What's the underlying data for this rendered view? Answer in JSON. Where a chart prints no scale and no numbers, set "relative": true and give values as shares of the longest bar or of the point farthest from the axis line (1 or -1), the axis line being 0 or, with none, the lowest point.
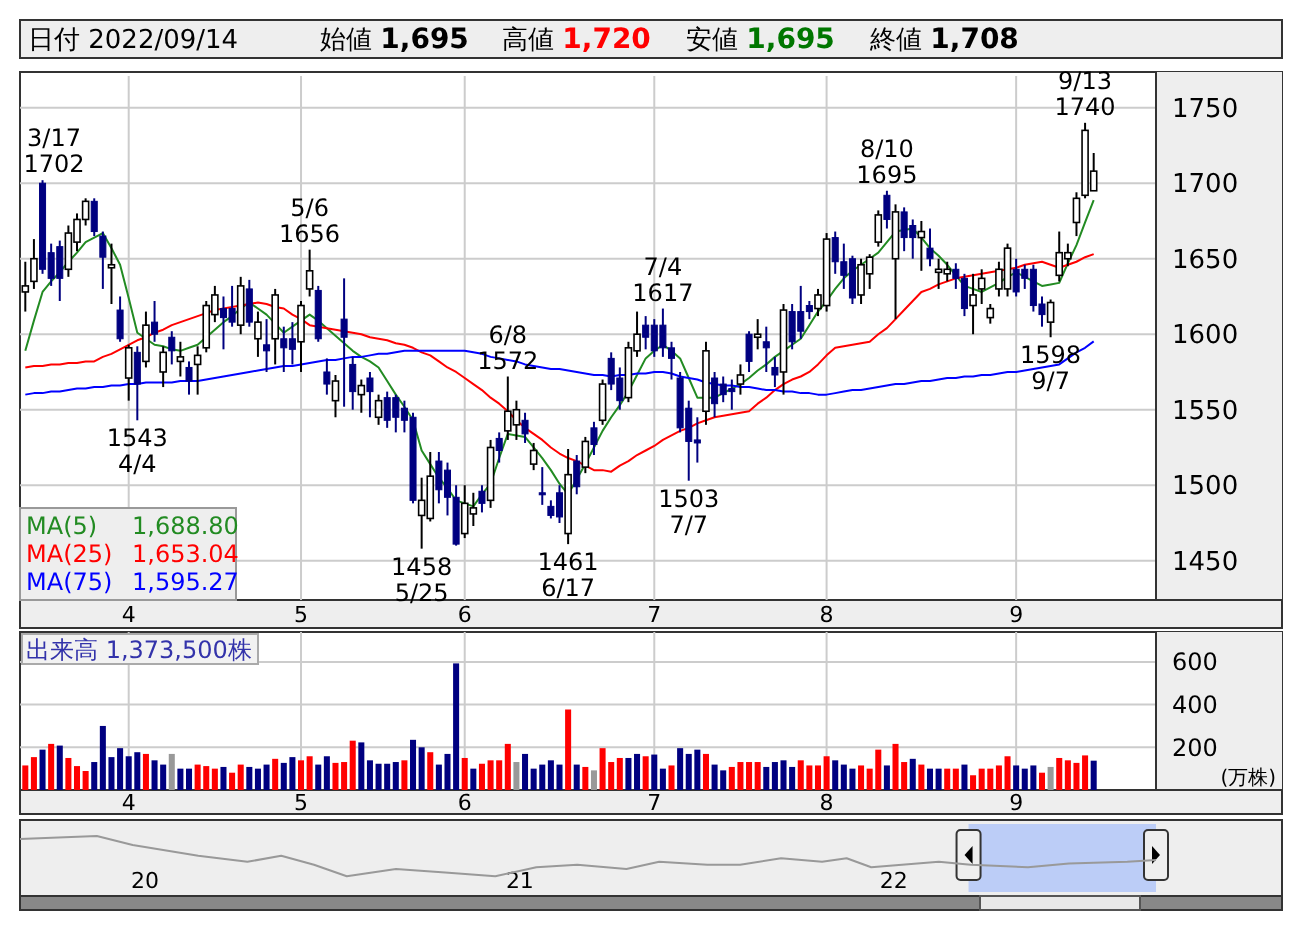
{
  "chart_data": [
    {
      "type": "candlestick",
      "categories": [
        null,
        null,
        null,
        null,
        null,
        null,
        null,
        null,
        null,
        null,
        null,
        null,
        "4",
        null,
        null,
        null,
        null,
        null,
        null,
        null,
        null,
        null,
        null,
        null,
        null,
        null,
        null,
        null,
        null,
        null,
        null,
        null,
        "5",
        null,
        null,
        null,
        null,
        null,
        null,
        null,
        null,
        null,
        null,
        null,
        null,
        null,
        null,
        null,
        null,
        null,
        null,
        "6",
        null,
        null,
        null,
        null,
        null,
        null,
        null,
        null,
        null,
        null,
        null,
        null,
        null,
        null,
        null,
        null,
        null,
        null,
        null,
        null,
        null,
        "7",
        null,
        null,
        null,
        null,
        null,
        null,
        null,
        null,
        null,
        null,
        null,
        null,
        null,
        null,
        null,
        null,
        null,
        null,
        null,
        "8",
        null,
        null,
        null,
        null,
        null,
        null,
        null,
        null,
        null,
        null,
        null,
        null,
        null,
        null,
        null,
        null,
        null,
        null,
        null,
        null,
        null,
        "9",
        null,
        null,
        null,
        null,
        null,
        null,
        null,
        null,
        null
      ],
      "ohlc": [
        [
          1628,
          1648,
          1615,
          1632
        ],
        [
          1635,
          1663,
          1630,
          1650
        ],
        [
          1700,
          1702,
          1640,
          1643
        ],
        [
          1654,
          1660,
          1632,
          1637
        ],
        [
          1658,
          1662,
          1622,
          1637
        ],
        [
          1643,
          1672,
          1638,
          1667
        ],
        [
          1661,
          1680,
          1655,
          1676
        ],
        [
          1676,
          1690,
          1672,
          1688
        ],
        [
          1688,
          1690,
          1665,
          1668
        ],
        [
          1665,
          1668,
          1630,
          1651
        ],
        [
          1644,
          1660,
          1620,
          1646
        ],
        [
          1616,
          1625,
          1595,
          1597
        ],
        [
          1571,
          1593,
          1556,
          1591
        ],
        [
          1588,
          1592,
          1543,
          1567
        ],
        [
          1582,
          1615,
          1578,
          1606
        ],
        [
          1608,
          1622,
          1595,
          1600
        ],
        [
          1575,
          1592,
          1565,
          1588
        ],
        [
          1598,
          1602,
          1580,
          1589
        ],
        [
          1582,
          1595,
          1572,
          1585
        ],
        [
          1578,
          1582,
          1560,
          1569
        ],
        [
          1580,
          1592,
          1560,
          1586
        ],
        [
          1591,
          1622,
          1588,
          1619
        ],
        [
          1613,
          1632,
          1608,
          1626
        ],
        [
          1617,
          1625,
          1590,
          1611
        ],
        [
          1617,
          1632,
          1605,
          1608
        ],
        [
          1606,
          1638,
          1600,
          1632
        ],
        [
          1630,
          1636,
          1605,
          1608
        ],
        [
          1597,
          1615,
          1585,
          1608
        ],
        [
          1593,
          1610,
          1575,
          1589
        ],
        [
          1597,
          1630,
          1580,
          1626
        ],
        [
          1597,
          1605,
          1575,
          1591
        ],
        [
          1597,
          1608,
          1580,
          1590
        ],
        [
          1595,
          1622,
          1575,
          1619
        ],
        [
          1630,
          1656,
          1625,
          1642
        ],
        [
          1629,
          1632,
          1595,
          1597
        ],
        [
          1575,
          1584,
          1560,
          1567
        ],
        [
          1556,
          1573,
          1545,
          1569
        ],
        [
          1610,
          1637,
          1552,
          1598
        ],
        [
          1580,
          1585,
          1550,
          1562
        ],
        [
          1560,
          1570,
          1548,
          1566
        ],
        [
          1571,
          1575,
          1545,
          1562
        ],
        [
          1545,
          1560,
          1540,
          1556
        ],
        [
          1558,
          1562,
          1538,
          1543
        ],
        [
          1558,
          1560,
          1535,
          1545
        ],
        [
          1551,
          1556,
          1535,
          1543
        ],
        [
          1545,
          1548,
          1488,
          1490
        ],
        [
          1480,
          1505,
          1458,
          1490
        ],
        [
          1478,
          1522,
          1476,
          1506
        ],
        [
          1516,
          1522,
          1488,
          1497
        ],
        [
          1510,
          1515,
          1480,
          1492
        ],
        [
          1492,
          1500,
          1460,
          1461
        ],
        [
          1468,
          1500,
          1465,
          1488
        ],
        [
          1481,
          1495,
          1473,
          1485
        ],
        [
          1496,
          1500,
          1482,
          1488
        ],
        [
          1490,
          1530,
          1485,
          1525
        ],
        [
          1531,
          1535,
          1515,
          1523
        ],
        [
          1536,
          1572,
          1530,
          1549
        ],
        [
          1540,
          1556,
          1530,
          1550
        ],
        [
          1543,
          1548,
          1528,
          1534
        ],
        [
          1514,
          1528,
          1510,
          1523
        ],
        [
          1495,
          1512,
          1487,
          1494
        ],
        [
          1486,
          1490,
          1478,
          1480
        ],
        [
          1495,
          1500,
          1475,
          1479
        ],
        [
          1468,
          1524,
          1461,
          1507
        ],
        [
          1516,
          1520,
          1494,
          1499
        ],
        [
          1512,
          1532,
          1508,
          1529
        ],
        [
          1538,
          1542,
          1520,
          1527
        ],
        [
          1543,
          1570,
          1540,
          1567
        ],
        [
          1584,
          1588,
          1563,
          1567
        ],
        [
          1571,
          1578,
          1550,
          1556
        ],
        [
          1558,
          1595,
          1555,
          1591
        ],
        [
          1589,
          1615,
          1585,
          1600
        ],
        [
          1606,
          1612,
          1590,
          1598
        ],
        [
          1606,
          1610,
          1585,
          1589
        ],
        [
          1606,
          1617,
          1585,
          1591
        ],
        [
          1591,
          1595,
          1570,
          1584
        ],
        [
          1571,
          1575,
          1535,
          1538
        ],
        [
          1551,
          1556,
          1503,
          1529
        ],
        [
          1530,
          1545,
          1515,
          1528
        ],
        [
          1549,
          1595,
          1540,
          1589
        ],
        [
          1571,
          1575,
          1545,
          1554
        ],
        [
          1567,
          1572,
          1555,
          1560
        ],
        [
          1564,
          1570,
          1550,
          1562
        ],
        [
          1567,
          1580,
          1560,
          1573
        ],
        [
          1600,
          1602,
          1575,
          1582
        ],
        [
          1598,
          1610,
          1590,
          1600
        ],
        [
          1595,
          1605,
          1575,
          1591
        ],
        [
          1578,
          1585,
          1565,
          1573
        ],
        [
          1575,
          1620,
          1560,
          1616
        ],
        [
          1615,
          1620,
          1590,
          1595
        ],
        [
          1615,
          1632,
          1597,
          1602
        ],
        [
          1619,
          1622,
          1610,
          1615
        ],
        [
          1617,
          1630,
          1612,
          1626
        ],
        [
          1619,
          1667,
          1615,
          1663
        ],
        [
          1664,
          1668,
          1640,
          1648
        ],
        [
          1648,
          1660,
          1630,
          1639
        ],
        [
          1650,
          1652,
          1620,
          1624
        ],
        [
          1626,
          1650,
          1620,
          1646
        ],
        [
          1640,
          1653,
          1630,
          1651
        ],
        [
          1661,
          1682,
          1658,
          1679
        ],
        [
          1692,
          1695,
          1670,
          1676
        ],
        [
          1650,
          1686,
          1610,
          1681
        ],
        [
          1681,
          1684,
          1655,
          1664
        ],
        [
          1672,
          1676,
          1650,
          1664
        ],
        [
          1664,
          1675,
          1642,
          1668
        ],
        [
          1657,
          1670,
          1645,
          1650
        ],
        [
          1641,
          1650,
          1630,
          1643
        ],
        [
          1640,
          1648,
          1635,
          1643
        ],
        [
          1643,
          1647,
          1630,
          1637
        ],
        [
          1637,
          1640,
          1612,
          1617
        ],
        [
          1619,
          1640,
          1600,
          1626
        ],
        [
          1630,
          1643,
          1620,
          1637
        ],
        [
          1611,
          1620,
          1607,
          1617
        ],
        [
          1630,
          1648,
          1625,
          1643
        ],
        [
          1630,
          1660,
          1625,
          1657
        ],
        [
          1643,
          1650,
          1625,
          1628
        ],
        [
          1643,
          1646,
          1630,
          1637
        ],
        [
          1643,
          1646,
          1615,
          1619
        ],
        [
          1620,
          1625,
          1605,
          1613
        ],
        [
          1608,
          1623,
          1598,
          1621
        ],
        [
          1639,
          1668,
          1635,
          1654
        ],
        [
          1650,
          1660,
          1645,
          1654
        ],
        [
          1674,
          1694,
          1665,
          1690
        ],
        [
          1692,
          1740,
          1690,
          1735
        ],
        [
          1695,
          1720,
          1695,
          1708
        ]
      ],
      "series": [
        {
          "name": "MA(5)",
          "type": "line",
          "color": "#228b22",
          "values": [
            1589,
            1609,
            1628,
            1635,
            1641,
            1648,
            1654,
            1661,
            1664,
            1667,
            1657,
            1646,
            1624,
            1601,
            1597,
            1593,
            1592,
            1590,
            1589,
            1591,
            1593,
            1598,
            1603,
            1608,
            1612,
            1617,
            1621,
            1617,
            1613,
            1607,
            1601,
            1605,
            1609,
            1613,
            1609,
            1604,
            1599,
            1594,
            1589,
            1585,
            1582,
            1578,
            1569,
            1560,
            1552,
            1543,
            1523,
            1514,
            1505,
            1498,
            1490,
            1488,
            1486,
            1494,
            1501,
            1518,
            1534,
            1533,
            1532,
            1525,
            1518,
            1510,
            1501,
            1494,
            1504,
            1514,
            1525,
            1536,
            1545,
            1553,
            1562,
            1573,
            1584,
            1589,
            1593,
            1589,
            1584,
            1571,
            1558,
            1558,
            1558,
            1561,
            1564,
            1567,
            1571,
            1576,
            1580,
            1585,
            1589,
            1593,
            1597,
            1606,
            1615,
            1622,
            1630,
            1637,
            1642,
            1646,
            1650,
            1654,
            1661,
            1668,
            1669,
            1670,
            1664,
            1657,
            1652,
            1646,
            1639,
            1632,
            1630,
            1628,
            1631,
            1634,
            1638,
            1641,
            1638,
            1635,
            1632,
            1633,
            1634,
            1647,
            1659,
            1674,
            1688.8
          ]
        },
        {
          "name": "MA(25)",
          "type": "line",
          "color": "#ff0000",
          "values": [
            1578,
            1579,
            1579,
            1580,
            1580,
            1581,
            1581,
            1582,
            1582,
            1585,
            1587,
            1590,
            1593,
            1596,
            1598,
            1601,
            1603,
            1606,
            1608,
            1610,
            1612,
            1614,
            1616,
            1617,
            1618,
            1619,
            1620,
            1621,
            1620,
            1618,
            1617,
            1613,
            1610,
            1606,
            1605,
            1604,
            1603,
            1602,
            1601,
            1600,
            1598,
            1597,
            1596,
            1594,
            1593,
            1591,
            1588,
            1586,
            1582,
            1578,
            1575,
            1571,
            1567,
            1563,
            1558,
            1554,
            1549,
            1543,
            1538,
            1534,
            1530,
            1525,
            1521,
            1518,
            1516,
            1513,
            1510,
            1510,
            1509,
            1513,
            1516,
            1520,
            1523,
            1526,
            1530,
            1533,
            1536,
            1538,
            1541,
            1543,
            1545,
            1546,
            1547,
            1548,
            1549,
            1554,
            1558,
            1563,
            1567,
            1570,
            1572,
            1575,
            1580,
            1586,
            1591,
            1592,
            1593,
            1594,
            1595,
            1600,
            1604,
            1610,
            1616,
            1622,
            1628,
            1630,
            1633,
            1635,
            1637,
            1638,
            1639,
            1640,
            1641,
            1642,
            1643,
            1644,
            1646,
            1647,
            1648,
            1646,
            1644,
            1646,
            1648,
            1651,
            1653.04
          ]
        },
        {
          "name": "MA(75)",
          "type": "line",
          "color": "#0000ff",
          "values": [
            1560,
            1561,
            1561,
            1562,
            1562,
            1563,
            1564,
            1564,
            1565,
            1565,
            1566,
            1566,
            1567,
            1567,
            1568,
            1568,
            1568,
            1568,
            1569,
            1569,
            1569,
            1570,
            1571,
            1572,
            1573,
            1574,
            1575,
            1576,
            1577,
            1578,
            1579,
            1579,
            1580,
            1581,
            1582,
            1583,
            1583,
            1584,
            1585,
            1585,
            1586,
            1587,
            1587,
            1588,
            1589,
            1589,
            1589,
            1589,
            1589,
            1589,
            1589,
            1589,
            1588,
            1587,
            1585,
            1584,
            1583,
            1582,
            1580,
            1579,
            1578,
            1577,
            1577,
            1576,
            1575,
            1574,
            1573,
            1573,
            1572,
            1573,
            1573,
            1574,
            1574,
            1575,
            1575,
            1574,
            1572,
            1571,
            1570,
            1568,
            1567,
            1566,
            1566,
            1565,
            1565,
            1564,
            1563,
            1563,
            1562,
            1562,
            1561,
            1561,
            1560,
            1560,
            1561,
            1562,
            1563,
            1563,
            1564,
            1565,
            1566,
            1567,
            1567,
            1568,
            1569,
            1569,
            1570,
            1571,
            1571,
            1572,
            1572,
            1573,
            1573,
            1574,
            1575,
            1575,
            1576,
            1577,
            1578,
            1579,
            1580,
            1584,
            1588,
            1591,
            1595.27
          ]
        }
      ],
      "ylim": [
        1424,
        1771
      ],
      "yticks": [
        1450,
        1500,
        1550,
        1600,
        1650,
        1700,
        1750
      ],
      "grid": true,
      "legend": "bottom left",
      "annotations": [
        "日付 2022/09/14",
        "始値 1,695",
        "高値 1,720",
        "安値 1,695",
        "終値 1,708",
        "1,688.80",
        "1,653.04",
        "1,595.27",
        {
          "text": "3/17 1702",
          "y": 1702
        },
        {
          "text": "1543 4/4",
          "y": 1543
        },
        {
          "text": "5/6 1656",
          "y": 1656
        },
        {
          "text": "1458 5/25",
          "y": 1458
        },
        {
          "text": "6/8 1572",
          "y": 1572
        },
        {
          "text": "1461 6/17",
          "y": 1461
        },
        {
          "text": "7/4 1617",
          "y": 1617
        },
        {
          "text": "1503 7/7",
          "y": 1503
        },
        {
          "text": "8/10 1695",
          "y": 1695
        },
        {
          "text": "1598 9/7",
          "y": 1598
        },
        {
          "text": "9/13 1740",
          "y": 1740
        }
      ]
    },
    {
      "type": "bar",
      "title": "出来高 1,373,500株",
      "ylabel": "(万株)",
      "categories": [
        null,
        null,
        null,
        null,
        null,
        null,
        null,
        null,
        null,
        null,
        null,
        null,
        "4",
        null,
        null,
        null,
        null,
        null,
        null,
        null,
        null,
        null,
        null,
        null,
        null,
        null,
        null,
        null,
        null,
        null,
        null,
        null,
        "5",
        null,
        null,
        null,
        null,
        null,
        null,
        null,
        null,
        null,
        null,
        null,
        null,
        null,
        null,
        null,
        null,
        null,
        null,
        "6",
        null,
        null,
        null,
        null,
        null,
        null,
        null,
        null,
        null,
        null,
        null,
        null,
        null,
        null,
        null,
        null,
        null,
        null,
        null,
        null,
        null,
        "7",
        null,
        null,
        null,
        null,
        null,
        null,
        null,
        null,
        null,
        null,
        null,
        null,
        null,
        null,
        null,
        null,
        null,
        null,
        null,
        "8",
        null,
        null,
        null,
        null,
        null,
        null,
        null,
        null,
        null,
        null,
        null,
        null,
        null,
        null,
        null,
        null,
        null,
        null,
        null,
        null,
        null,
        "9",
        null,
        null,
        null,
        null,
        null,
        null,
        null,
        null,
        null
      ],
      "values": [
        115,
        154,
        189,
        216,
        208,
        150,
        112,
        89,
        131,
        300,
        154,
        196,
        158,
        177,
        169,
        139,
        119,
        169,
        100,
        100,
        119,
        112,
        100,
        108,
        81,
        119,
        108,
        100,
        119,
        146,
        127,
        154,
        139,
        158,
        119,
        158,
        127,
        131,
        231,
        223,
        139,
        123,
        123,
        131,
        139,
        235,
        200,
        177,
        119,
        169,
        593,
        150,
        100,
        123,
        139,
        139,
        216,
        131,
        169,
        100,
        119,
        139,
        119,
        377,
        119,
        108,
        92,
        196,
        131,
        150,
        150,
        169,
        158,
        166,
        100,
        115,
        196,
        169,
        189,
        169,
        119,
        92,
        108,
        131,
        131,
        131,
        108,
        131,
        139,
        108,
        139,
        115,
        115,
        158,
        139,
        119,
        100,
        115,
        100,
        189,
        115,
        216,
        131,
        146,
        119,
        100,
        100,
        100,
        100,
        119,
        69,
        100,
        100,
        115,
        158,
        115,
        100,
        115,
        81,
        108,
        150,
        139,
        127,
        162,
        137.35
      ],
      "colors": [
        "#ff0000",
        "#ff0000",
        "#000080",
        "#ff0000",
        "#000080",
        "#ff0000",
        "#ff0000",
        "#ff0000",
        "#000080",
        "#000080",
        "#000080",
        "#000080",
        "#000080",
        "#000080",
        "#ff0000",
        "#000080",
        "#000080",
        "#999999",
        "#000080",
        "#000080",
        "#ff0000",
        "#ff0000",
        "#ff0000",
        "#000080",
        "#ff0000",
        "#ff0000",
        "#000080",
        "#000080",
        "#000080",
        "#ff0000",
        "#000080",
        "#000080",
        "#ff0000",
        "#ff0000",
        "#000080",
        "#000080",
        "#ff0000",
        "#ff0000",
        "#ff0000",
        "#000080",
        "#000080",
        "#000080",
        "#000080",
        "#000080",
        "#ff0000",
        "#000080",
        "#000080",
        "#ff0000",
        "#000080",
        "#000080",
        "#000080",
        "#ff0000",
        "#000080",
        "#ff0000",
        "#ff0000",
        "#ff0000",
        "#ff0000",
        "#999999",
        "#000080",
        "#000080",
        "#000080",
        "#000080",
        "#000080",
        "#ff0000",
        "#000080",
        "#ff0000",
        "#999999",
        "#ff0000",
        "#ff0000",
        "#ff0000",
        "#000080",
        "#000080",
        "#ff0000",
        "#000080",
        "#000080",
        "#ff0000",
        "#000080",
        "#000080",
        "#000080",
        "#ff0000",
        "#000080",
        "#000080",
        "#ff0000",
        "#ff0000",
        "#ff0000",
        "#ff0000",
        "#000080",
        "#000080",
        "#000080",
        "#000080",
        "#ff0000",
        "#ff0000",
        "#ff0000",
        "#ff0000",
        "#000080",
        "#000080",
        "#000080",
        "#ff0000",
        "#ff0000",
        "#ff0000",
        "#000080",
        "#ff0000",
        "#ff0000",
        "#000080",
        "#ff0000",
        "#000080",
        "#000080",
        "#ff0000",
        "#ff0000",
        "#000080",
        "#ff0000",
        "#ff0000",
        "#ff0000",
        "#ff0000",
        "#ff0000",
        "#000080",
        "#000080",
        "#000080",
        "#ff0000",
        "#999999",
        "#ff0000",
        "#ff0000",
        "#ff0000",
        "#ff0000",
        "#000080"
      ],
      "ylim": [
        0,
        740
      ],
      "yticks": [
        200,
        400,
        600
      ],
      "grid": true
    },
    {
      "type": "line",
      "relative": true,
      "tick_labels": "x",
      "xlim": [
        "2019-09-01",
        "2023-01-15"
      ],
      "xticks": [
        {
          "value": "2020-01-01",
          "label": "20"
        },
        {
          "value": "2021-01-01",
          "label": "21"
        },
        {
          "value": "2022-01-01",
          "label": "22"
        }
      ],
      "bands": [
        {
          "axis": "x",
          "from": "2022-03-15",
          "to": "2022-09-14",
          "color": "#bccdf7"
        }
      ],
      "series": [
        {
          "color": "#999999",
          "x": [
            "2019-09-01",
            "2019-11-15",
            "2019-12-20",
            "2020-02-22",
            "2020-04-10",
            "2020-05-13",
            "2020-06-14",
            "2020-07-16",
            "2020-09-02",
            "2020-10-20",
            "2020-12-08",
            "2021-01-17",
            "2021-02-26",
            "2021-04-15",
            "2021-05-17",
            "2021-07-03",
            "2021-08-04",
            "2021-09-13",
            "2021-10-23",
            "2021-11-16",
            "2021-12-10",
            "2022-02-14",
            "2022-03-17",
            "2022-05-12",
            "2022-06-21",
            "2022-08-17",
            "2022-09-14"
          ],
          "values": [
            0.95,
            1,
            0.85,
            0.67,
            0.57,
            0.67,
            0.52,
            0.33,
            0.45,
            0.39,
            0.33,
            0.48,
            0.52,
            0.45,
            0.57,
            0.52,
            0.52,
            0.63,
            0.57,
            0.63,
            0.48,
            0.57,
            0.52,
            0.48,
            0.54,
            0.57,
            0.6
          ]
        }
      ]
    }
  ]
}
